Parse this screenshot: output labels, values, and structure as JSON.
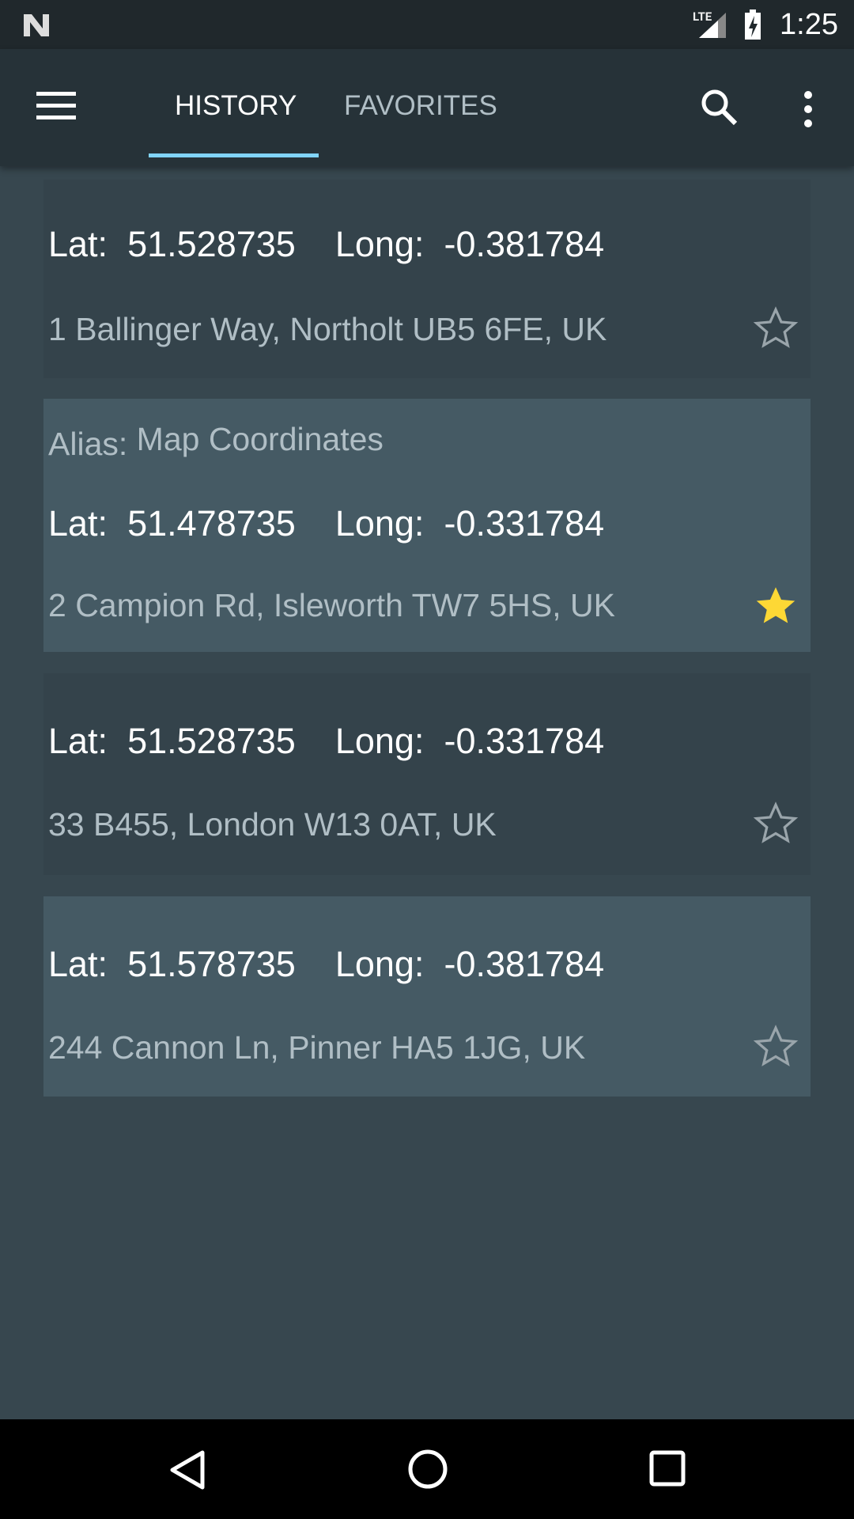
{
  "status_bar": {
    "time": "1:25",
    "network": "LTE"
  },
  "app_bar": {
    "tabs": [
      {
        "label": "HISTORY",
        "active": true
      },
      {
        "label": "FAVORITES",
        "active": false
      }
    ],
    "accent": "#81d4fa"
  },
  "labels": {
    "lat": "Lat:",
    "long": "Long:",
    "alias": "Alias:"
  },
  "items": [
    {
      "lat": "51.528735",
      "long": "-0.381784",
      "address": "1 Ballinger Way, Northolt UB5 6FE, UK",
      "favorite": false
    },
    {
      "alias": "Map Coordinates",
      "lat": "51.478735",
      "long": "-0.331784",
      "address": "2 Campion Rd, Isleworth TW7 5HS, UK",
      "favorite": true
    },
    {
      "lat": "51.528735",
      "long": "-0.331784",
      "address": "33 B455, London W13 0AT, UK",
      "favorite": false
    },
    {
      "lat": "51.578735",
      "long": "-0.381784",
      "address": "244 Cannon Ln, Pinner HA5 1JG, UK",
      "favorite": false
    }
  ],
  "colors": {
    "favorite_star": "#fdd835"
  }
}
